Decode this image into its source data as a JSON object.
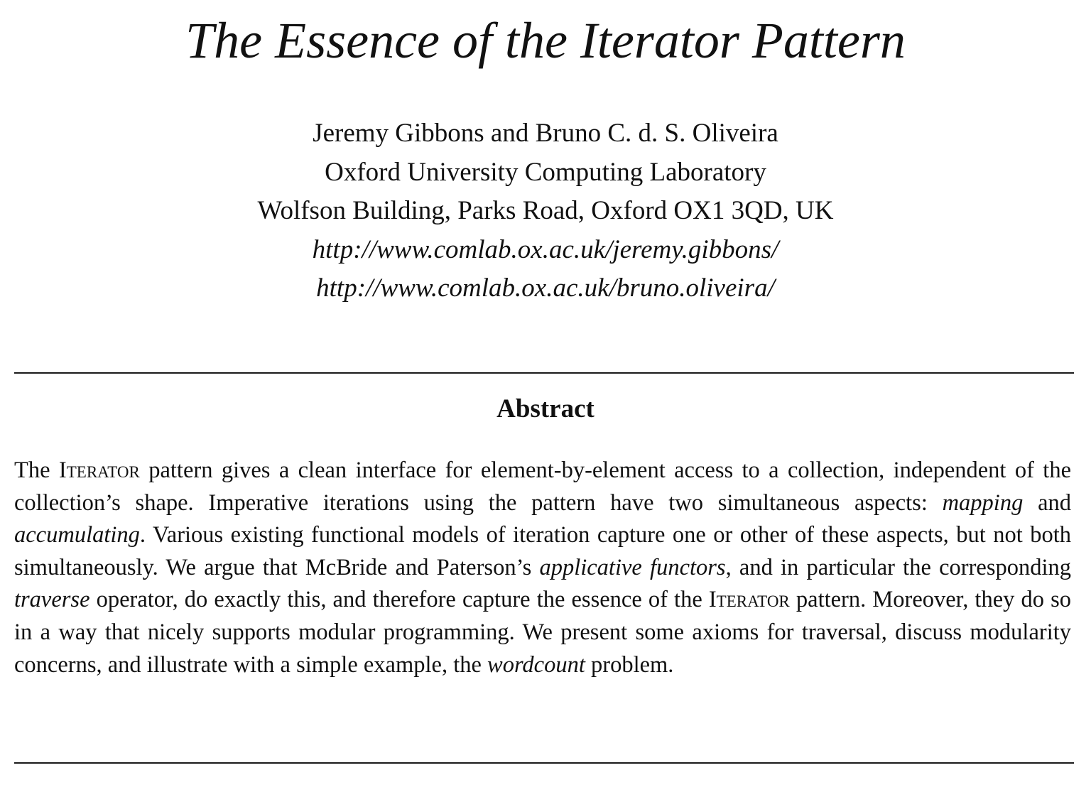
{
  "paper": {
    "title": "The Essence of the Iterator Pattern",
    "authors": "Jeremy Gibbons and Bruno C. d. S. Oliveira",
    "affiliation": "Oxford University Computing Laboratory",
    "address": "Wolfson Building, Parks Road, Oxford OX1 3QD, UK",
    "urls": [
      "http://www.comlab.ox.ac.uk/jeremy.gibbons/",
      "http://www.comlab.ox.ac.uk/bruno.oliveira/"
    ]
  },
  "abstract": {
    "heading": "Abstract",
    "segments": [
      "The ",
      "Iterator",
      " pattern gives a clean interface for element-by-element access to a collection, in­dependent of the collection’s shape. Imperative iterations using the pattern have two simultaneous aspects: ",
      "mapping",
      " and ",
      "accumulating",
      ". Various existing functional models of iteration capture one or other of these aspects, but not both simultaneously. We argue that McBride and Paterson’s ",
      "applicative functors",
      ", and in particular the corresponding ",
      "traverse",
      " operator, do exactly this, and therefore capture the essence of the ",
      "Iterator",
      " pattern. Moreover, they do so in a way that nicely supports modular programming. We present some axioms for traversal, discuss modularity concerns, and illustrate with a simple example, the ",
      "wordcount",
      " problem."
    ]
  }
}
